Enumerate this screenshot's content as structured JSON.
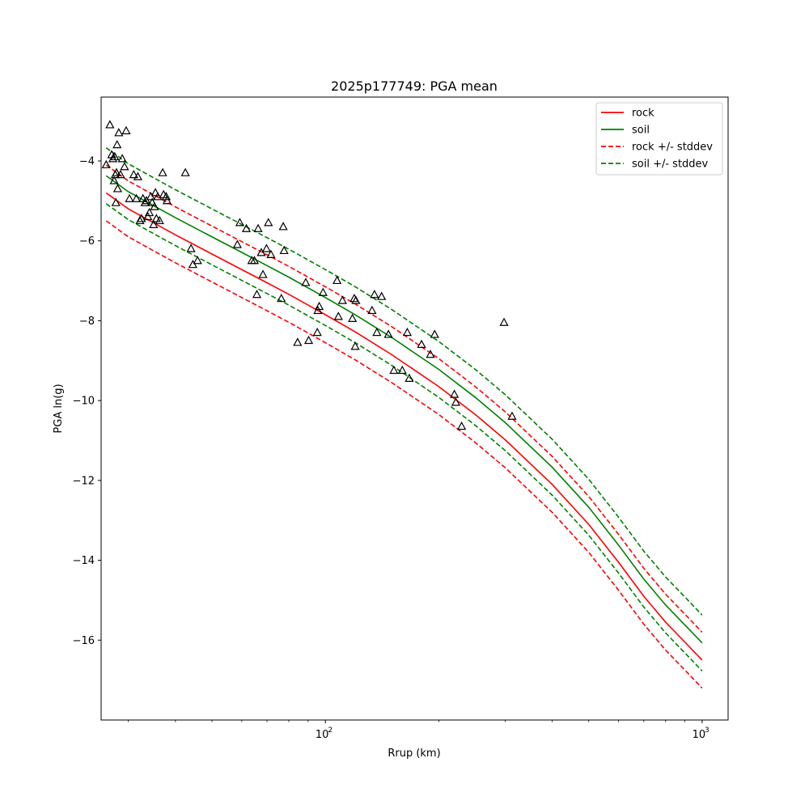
{
  "chart_data": {
    "type": "line",
    "title": "2025p177749: PGA mean",
    "xlabel": "Rrup (km)",
    "ylabel": "PGA ln(g)",
    "xscale": "log",
    "xlim": [
      25.4,
      1172
    ],
    "ylim": [
      -18.0,
      -2.4
    ],
    "xticks": [
      {
        "value": 100,
        "label": "10",
        "exp": "2"
      },
      {
        "value": 1000,
        "label": "10",
        "exp": "3"
      }
    ],
    "yticks": [
      -4,
      -6,
      -8,
      -10,
      -12,
      -14,
      -16
    ],
    "grid": false,
    "legend_position": "top-right",
    "series": [
      {
        "name": "rock",
        "color": "#ff0000",
        "dash": "solid",
        "x": [
          26.2,
          30,
          35,
          40,
          50,
          60,
          70,
          80,
          100,
          120,
          150,
          200,
          250,
          300,
          400,
          500,
          600,
          700,
          800,
          900,
          1000
        ],
        "y": [
          -4.8,
          -5.2,
          -5.55,
          -5.85,
          -6.33,
          -6.72,
          -7.05,
          -7.34,
          -7.85,
          -8.28,
          -8.85,
          -9.65,
          -10.35,
          -10.98,
          -12.1,
          -13.1,
          -14.05,
          -14.9,
          -15.55,
          -16.05,
          -16.5
        ]
      },
      {
        "name": "soil",
        "color": "#008000",
        "dash": "solid",
        "x": [
          26.2,
          30,
          35,
          40,
          50,
          60,
          70,
          80,
          100,
          120,
          150,
          200,
          250,
          300,
          400,
          500,
          600,
          700,
          800,
          900,
          1000
        ],
        "y": [
          -4.37,
          -4.77,
          -5.12,
          -5.42,
          -5.9,
          -6.29,
          -6.62,
          -6.91,
          -7.42,
          -7.85,
          -8.42,
          -9.22,
          -9.92,
          -10.55,
          -11.67,
          -12.67,
          -13.62,
          -14.47,
          -15.12,
          -15.62,
          -16.07
        ]
      },
      {
        "name": "rock +/- stddev",
        "color": "#ff0000",
        "dash": "dashed",
        "x": [
          26.2,
          30,
          35,
          40,
          50,
          60,
          70,
          80,
          100,
          120,
          150,
          200,
          250,
          300,
          400,
          500,
          600,
          700,
          800,
          900,
          1000
        ],
        "y": [
          -4.1,
          -4.5,
          -4.85,
          -5.15,
          -5.63,
          -6.02,
          -6.35,
          -6.64,
          -7.15,
          -7.58,
          -8.15,
          -8.95,
          -9.65,
          -10.28,
          -11.4,
          -12.4,
          -13.35,
          -14.2,
          -14.85,
          -15.35,
          -15.8
        ]
      },
      {
        "name": "",
        "color": "#ff0000",
        "dash": "dashed",
        "x": [
          26.2,
          30,
          35,
          40,
          50,
          60,
          70,
          80,
          100,
          120,
          150,
          200,
          250,
          300,
          400,
          500,
          600,
          700,
          800,
          900,
          1000
        ],
        "y": [
          -5.5,
          -5.9,
          -6.25,
          -6.55,
          -7.03,
          -7.42,
          -7.75,
          -8.04,
          -8.55,
          -8.98,
          -9.55,
          -10.35,
          -11.05,
          -11.68,
          -12.8,
          -13.8,
          -14.75,
          -15.6,
          -16.25,
          -16.75,
          -17.2
        ]
      },
      {
        "name": "soil +/- stddev",
        "color": "#008000",
        "dash": "dashed",
        "x": [
          26.2,
          30,
          35,
          40,
          50,
          60,
          70,
          80,
          100,
          120,
          150,
          200,
          250,
          300,
          400,
          500,
          600,
          700,
          800,
          900,
          1000
        ],
        "y": [
          -3.67,
          -4.07,
          -4.42,
          -4.72,
          -5.2,
          -5.59,
          -5.92,
          -6.21,
          -6.72,
          -7.15,
          -7.72,
          -8.52,
          -9.22,
          -9.85,
          -10.97,
          -11.97,
          -12.92,
          -13.77,
          -14.42,
          -14.92,
          -15.37
        ]
      },
      {
        "name": "",
        "color": "#008000",
        "dash": "dashed",
        "x": [
          26.2,
          30,
          35,
          40,
          50,
          60,
          70,
          80,
          100,
          120,
          150,
          200,
          250,
          300,
          400,
          500,
          600,
          700,
          800,
          900,
          1000
        ],
        "y": [
          -5.07,
          -5.47,
          -5.82,
          -6.12,
          -6.6,
          -6.99,
          -7.32,
          -7.61,
          -8.12,
          -8.55,
          -9.12,
          -9.92,
          -10.62,
          -11.25,
          -12.37,
          -13.37,
          -14.32,
          -15.17,
          -15.82,
          -16.32,
          -16.77
        ]
      }
    ],
    "observations": {
      "marker": "triangle",
      "x": [
        26.2,
        26.8,
        27.1,
        27.3,
        27.5,
        27.6,
        27.7,
        27.8,
        27.9,
        28.0,
        28.1,
        28.3,
        28.6,
        28.9,
        29.3,
        29.6,
        30.2,
        31.0,
        31.5,
        31.8,
        32.2,
        32.5,
        32.8,
        33.2,
        33.5,
        33.8,
        34.1,
        34.4,
        34.7,
        35.0,
        35.2,
        35.4,
        35.6,
        35.9,
        36.3,
        37.0,
        37.2,
        37.8,
        38.0,
        42.5,
        44.0,
        44.5,
        45.8,
        58.4,
        59.3,
        61.7,
        63.8,
        64.8,
        65.8,
        66.3,
        67.6,
        68.3,
        69.8,
        70.6,
        71.7,
        76.4,
        77.3,
        77.7,
        84.4,
        88.7,
        90.3,
        95.2,
        95.5,
        96.3,
        98.6,
        107.4,
        108.3,
        111.0,
        118.0,
        119.3,
        120.0,
        120.5,
        133.0,
        135.0,
        137.0,
        141.0,
        147.0,
        152.0,
        160.0,
        165.0,
        167.0,
        180.0,
        190.0,
        195.0,
        220.0,
        222.0,
        230.0,
        298.0,
        313.0
      ],
      "y": [
        -4.1,
        -3.1,
        -3.85,
        -3.95,
        -4.5,
        -3.9,
        -4.35,
        -5.05,
        -4.3,
        -3.6,
        -4.7,
        -3.3,
        -4.35,
        -3.95,
        -4.15,
        -3.25,
        -4.95,
        -4.35,
        -4.95,
        -4.4,
        -5.5,
        -5.45,
        -4.95,
        -5.05,
        -5.0,
        -5.4,
        -5.3,
        -4.9,
        -5.05,
        -5.6,
        -5.15,
        -4.8,
        -5.45,
        -4.9,
        -5.5,
        -4.3,
        -4.85,
        -4.9,
        -5.0,
        -4.3,
        -6.2,
        -6.6,
        -6.5,
        -6.1,
        -5.55,
        -5.7,
        -6.5,
        -6.5,
        -7.35,
        -5.7,
        -6.3,
        -6.85,
        -6.2,
        -5.55,
        -6.35,
        -7.45,
        -5.65,
        -6.25,
        -8.55,
        -7.05,
        -8.5,
        -8.3,
        -7.75,
        -7.65,
        -7.3,
        -7.0,
        -7.9,
        -7.5,
        -7.95,
        -7.45,
        -8.65,
        -7.5,
        -7.75,
        -7.35,
        -8.3,
        -7.4,
        -8.35,
        -9.25,
        -9.25,
        -8.3,
        -9.45,
        -8.6,
        -8.85,
        -8.35,
        -9.85,
        -10.05,
        -10.65,
        -8.05,
        -10.4
      ]
    }
  }
}
